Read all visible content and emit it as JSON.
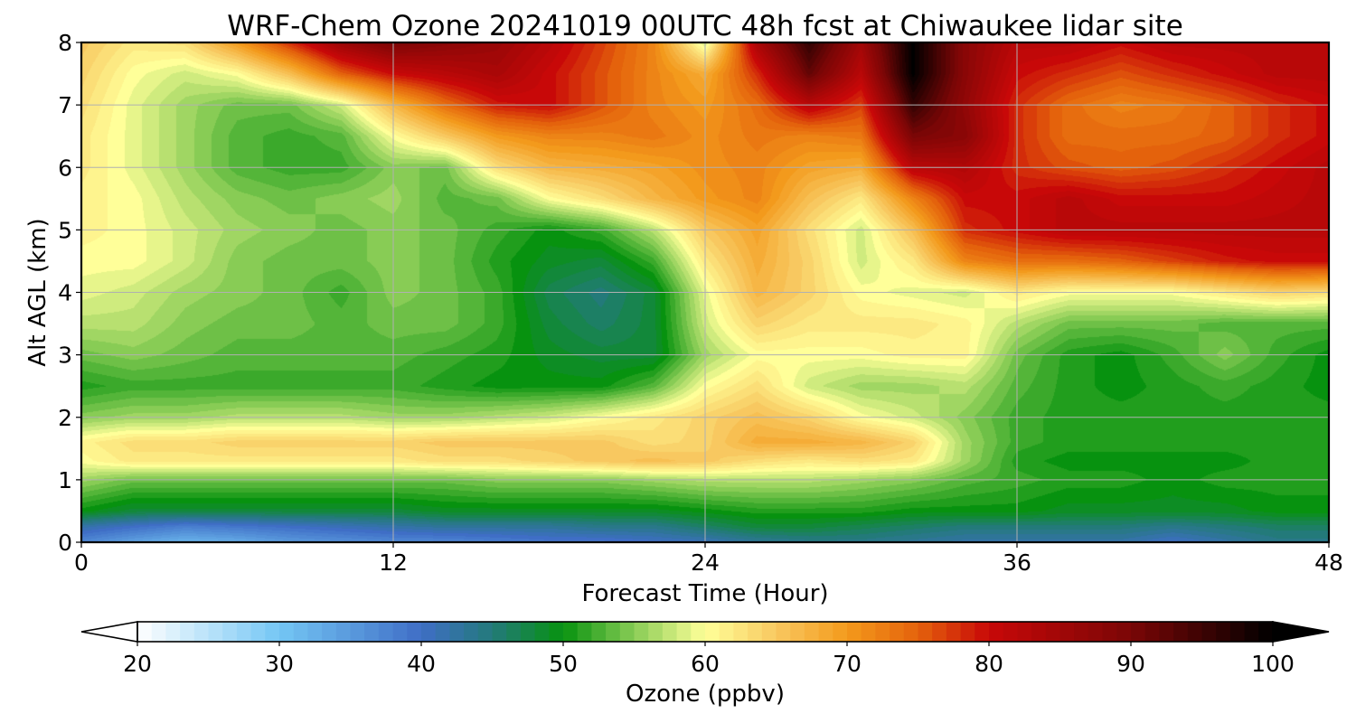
{
  "chart_data": {
    "type": "heatmap",
    "title": "WRF-Chem Ozone  20241019 00UTC 48h fcst at Chiwaukee lidar site",
    "xlabel": "Forecast Time (Hour)",
    "ylabel": "Alt AGL (km)",
    "xlim": [
      0,
      48
    ],
    "ylim": [
      0,
      8
    ],
    "xticks": [
      0,
      12,
      24,
      36,
      48
    ],
    "yticks": [
      0,
      1,
      2,
      3,
      4,
      5,
      6,
      7,
      8
    ],
    "grid": true,
    "colorbar": {
      "label": "Ozone  (ppbv)",
      "range": [
        20,
        100
      ],
      "ticks": [
        20,
        30,
        40,
        50,
        60,
        70,
        80,
        90,
        100
      ],
      "extend": "both",
      "orientation": "horizontal",
      "location": "bottom",
      "colors": [
        {
          "v": 20,
          "c": "#ffffff"
        },
        {
          "v": 30,
          "c": "#74c6f4"
        },
        {
          "v": 40,
          "c": "#3f6ec6"
        },
        {
          "v": 45,
          "c": "#237a7a"
        },
        {
          "v": 50,
          "c": "#07920f"
        },
        {
          "v": 55,
          "c": "#88cc55"
        },
        {
          "v": 60,
          "c": "#ffff99"
        },
        {
          "v": 65,
          "c": "#f8c860"
        },
        {
          "v": 70,
          "c": "#f39a1c"
        },
        {
          "v": 75,
          "c": "#e4620c"
        },
        {
          "v": 80,
          "c": "#c80808"
        },
        {
          "v": 90,
          "c": "#7a0606"
        },
        {
          "v": 100,
          "c": "#000000"
        }
      ]
    },
    "x": [
      0,
      2,
      4,
      6,
      8,
      10,
      12,
      14,
      16,
      18,
      20,
      22,
      24,
      26,
      28,
      30,
      32,
      34,
      36,
      38,
      40,
      42,
      44,
      46,
      48
    ],
    "y": [
      0,
      0.25,
      0.5,
      1,
      1.3,
      1.6,
      2,
      2.5,
      3,
      3.5,
      4,
      4.5,
      5,
      5.5,
      6,
      6.5,
      7,
      7.5,
      8
    ],
    "z": [
      [
        37,
        34,
        32,
        33,
        35,
        36,
        37,
        37,
        38,
        39,
        39,
        40,
        41,
        43,
        44,
        44,
        43,
        42,
        42,
        42,
        42,
        40,
        42,
        44,
        44
      ],
      [
        42,
        40,
        38,
        39,
        40,
        41,
        42,
        43,
        43,
        43,
        44,
        44,
        46,
        48,
        48,
        47,
        46,
        45,
        45,
        45,
        45,
        44,
        45,
        46,
        46
      ],
      [
        50,
        48,
        48,
        48,
        48,
        48,
        48,
        49,
        49,
        49,
        49,
        49,
        50,
        51,
        51,
        51,
        50,
        50,
        50,
        49,
        49,
        49,
        49,
        50,
        50
      ],
      [
        56,
        54,
        54,
        54,
        54,
        54,
        54,
        54,
        55,
        55,
        55,
        56,
        57,
        57,
        57,
        56,
        55,
        53,
        52,
        51,
        51,
        50,
        51,
        51,
        51
      ],
      [
        60,
        62,
        62,
        62,
        62,
        62,
        62,
        63,
        63,
        64,
        65,
        66,
        65,
        63,
        62,
        63,
        62,
        56,
        51,
        50,
        50,
        50,
        50,
        51,
        51
      ],
      [
        61,
        63,
        63,
        64,
        64,
        64,
        64,
        65,
        65,
        65,
        65,
        63,
        64,
        68,
        68,
        67,
        64,
        56,
        52,
        51,
        51,
        51,
        51,
        51,
        51
      ],
      [
        55,
        56,
        56,
        57,
        57,
        57,
        56,
        56,
        57,
        58,
        60,
        62,
        64,
        66,
        64,
        60,
        58,
        55,
        52,
        51,
        51,
        51,
        51,
        51,
        51
      ],
      [
        51,
        52,
        52,
        52,
        52,
        52,
        52,
        51,
        50,
        50,
        50,
        53,
        60,
        63,
        58,
        56,
        56,
        57,
        53,
        51,
        50,
        51,
        52,
        51,
        50
      ],
      [
        54,
        55,
        54,
        53,
        53,
        53,
        53,
        52,
        51,
        49,
        48,
        48,
        56,
        60,
        60,
        60,
        61,
        61,
        54,
        51,
        50,
        52,
        55,
        52,
        50
      ],
      [
        57,
        57,
        55,
        54,
        54,
        53,
        54,
        54,
        52,
        48,
        46,
        48,
        58,
        64,
        62,
        62,
        62,
        61,
        57,
        54,
        54,
        54,
        53,
        53,
        53
      ],
      [
        59,
        58,
        56,
        55,
        54,
        52,
        55,
        54,
        52,
        47,
        45,
        48,
        59,
        67,
        64,
        60,
        59,
        58,
        62,
        60,
        60,
        60,
        62,
        64,
        63
      ],
      [
        60,
        60,
        58,
        55,
        54,
        54,
        55,
        54,
        51,
        49,
        48,
        52,
        62,
        68,
        64,
        58,
        62,
        72,
        74,
        74,
        75,
        77,
        79,
        80,
        80
      ],
      [
        61,
        60,
        58,
        56,
        55,
        54,
        55,
        54,
        52,
        50,
        52,
        57,
        65,
        69,
        63,
        58,
        66,
        78,
        80,
        82,
        82,
        82,
        82,
        82,
        82
      ],
      [
        61,
        60,
        57,
        55,
        54,
        55,
        56,
        53,
        54,
        60,
        63,
        67,
        70,
        72,
        66,
        62,
        72,
        80,
        80,
        82,
        80,
        80,
        80,
        81,
        82
      ],
      [
        62,
        59,
        56,
        53,
        52,
        52,
        55,
        54,
        63,
        67,
        68,
        69,
        71,
        72,
        69,
        68,
        82,
        83,
        78,
        76,
        75,
        76,
        78,
        80,
        82
      ],
      [
        62,
        59,
        56,
        53,
        52,
        53,
        60,
        65,
        70,
        72,
        72,
        73,
        71,
        73,
        72,
        73,
        90,
        88,
        78,
        74,
        74,
        74,
        75,
        78,
        80
      ],
      [
        63,
        59,
        56,
        54,
        54,
        58,
        67,
        74,
        79,
        80,
        76,
        72,
        70,
        74,
        82,
        77,
        96,
        87,
        78,
        74,
        72,
        73,
        75,
        78,
        80
      ],
      [
        64,
        60,
        58,
        60,
        66,
        75,
        80,
        82,
        84,
        80,
        76,
        72,
        68,
        78,
        92,
        82,
        100,
        88,
        80,
        78,
        76,
        78,
        80,
        82,
        82
      ],
      [
        65,
        62,
        63,
        70,
        78,
        86,
        90,
        88,
        86,
        82,
        77,
        72,
        58,
        84,
        96,
        85,
        100,
        88,
        82,
        82,
        80,
        82,
        82,
        82,
        82
      ]
    ]
  }
}
